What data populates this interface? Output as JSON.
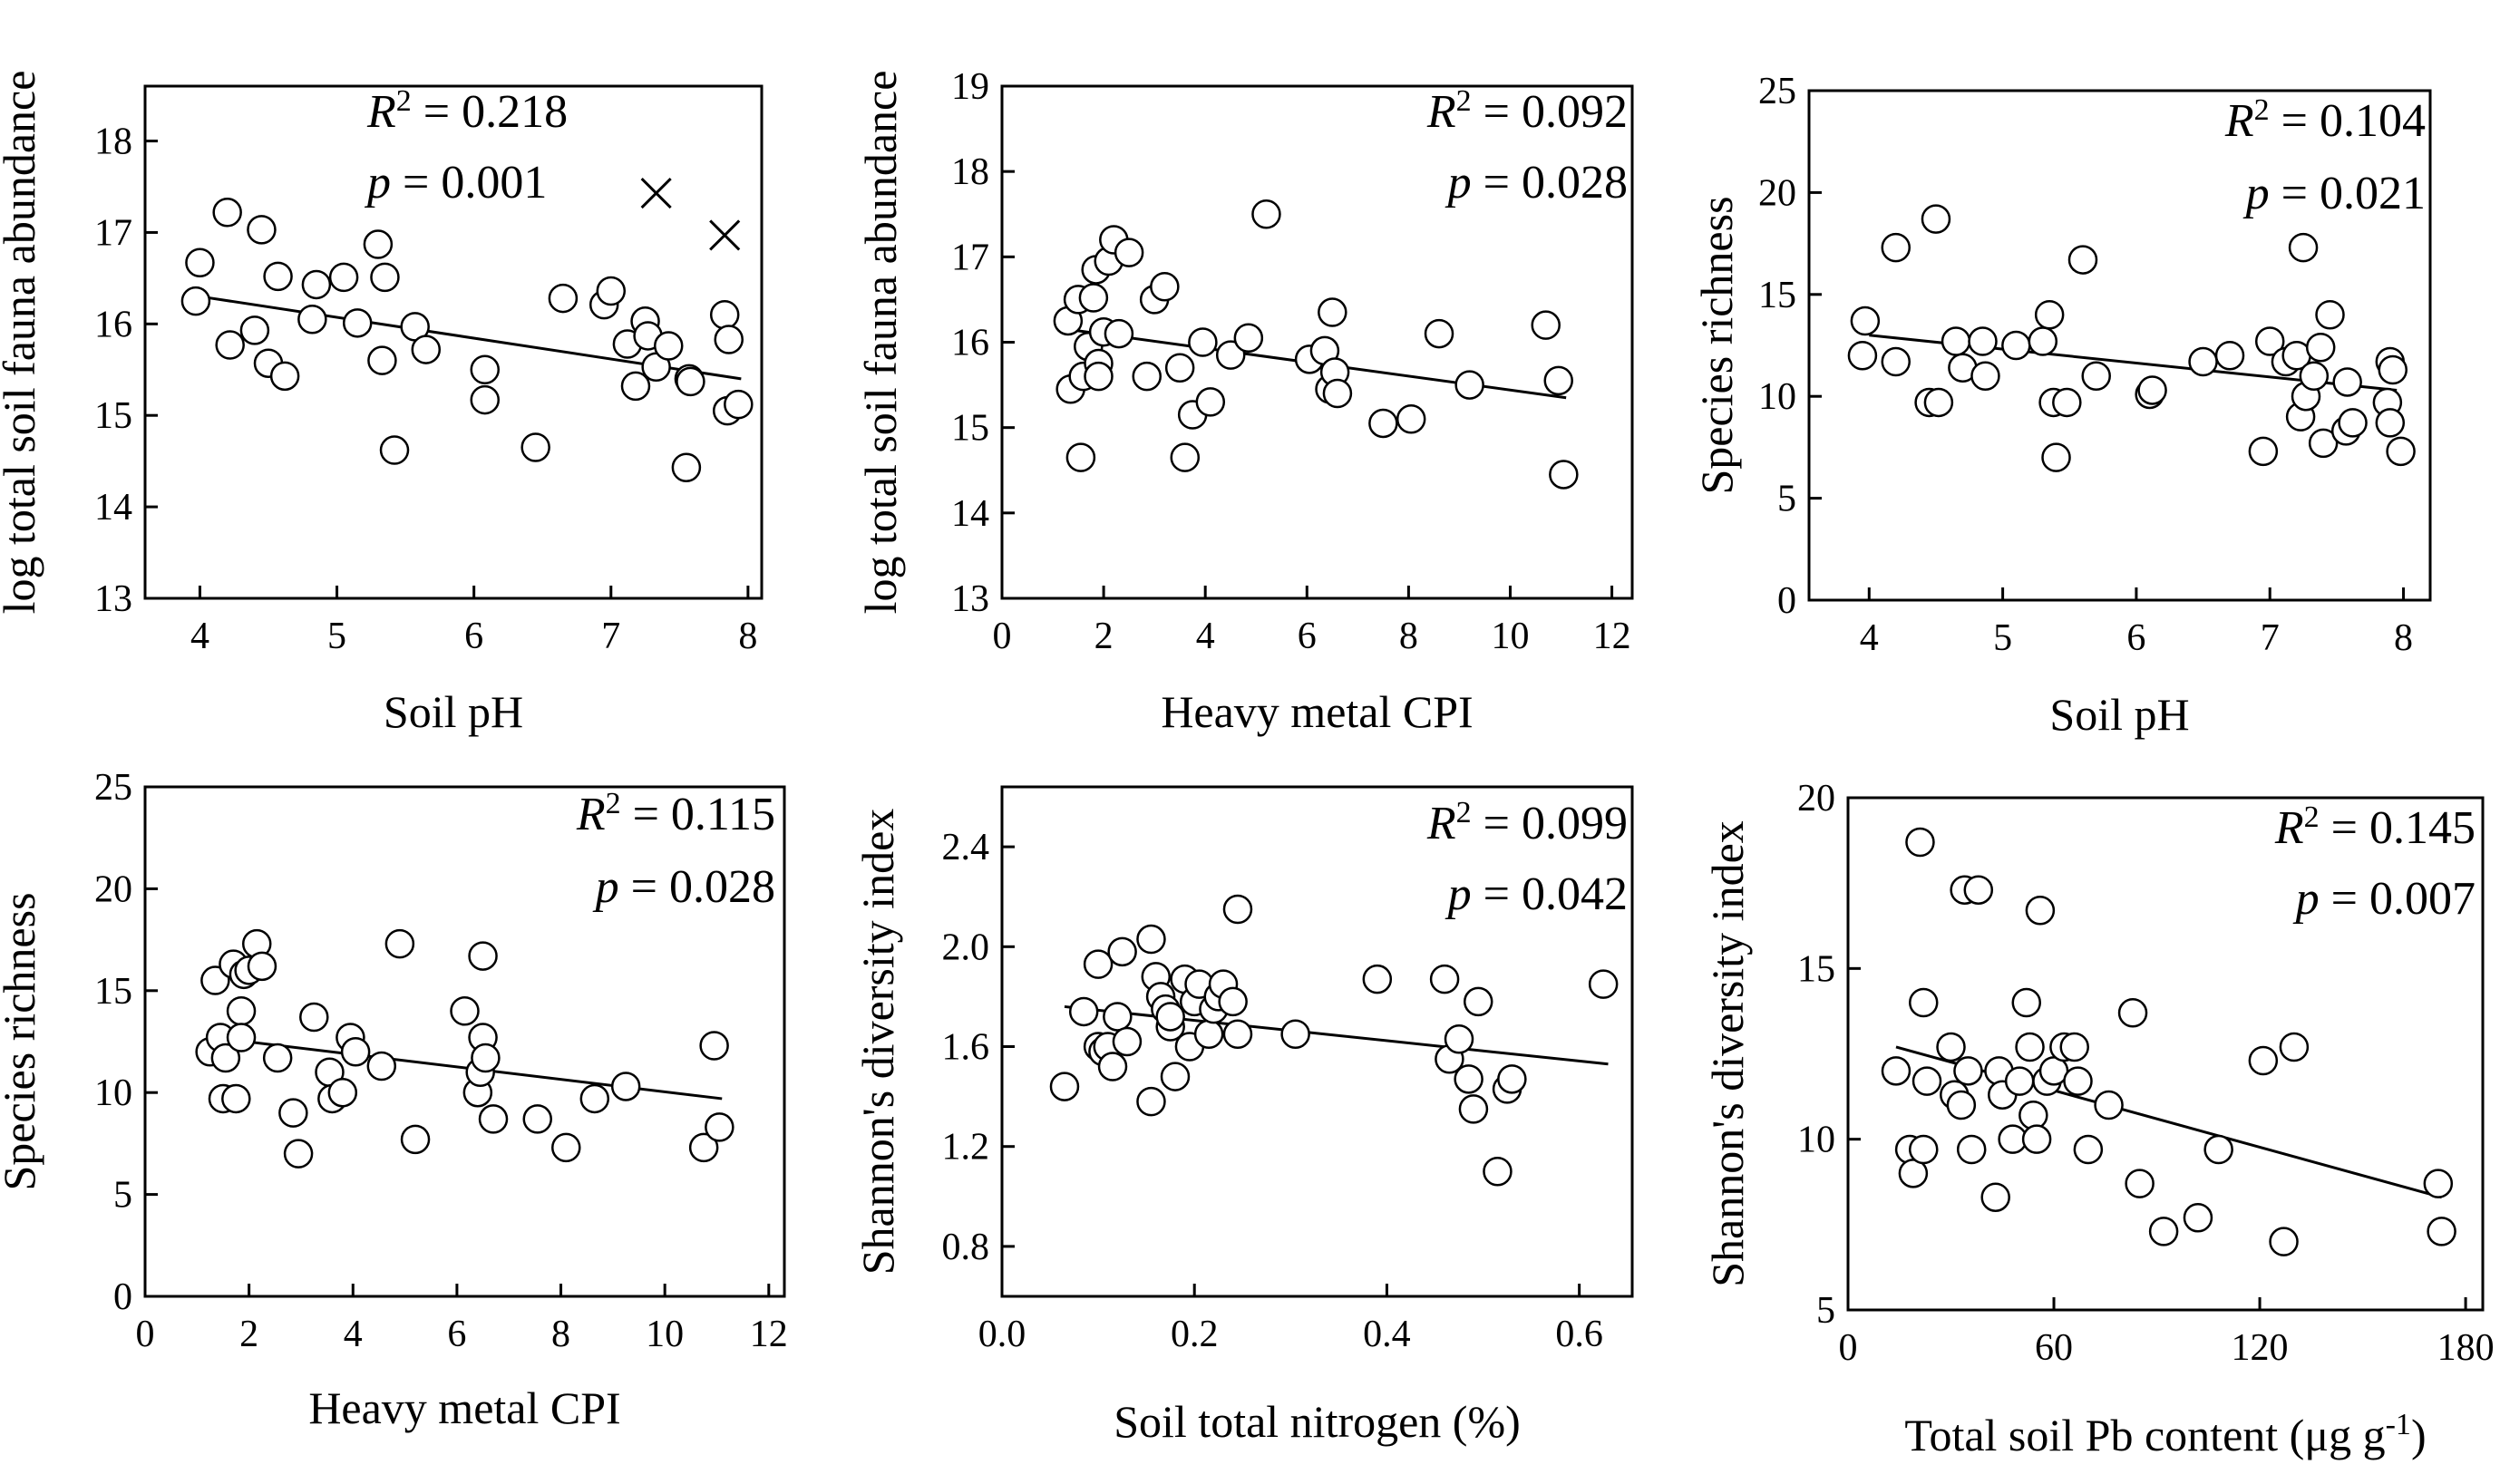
{
  "chart_data": [
    {
      "type": "scatter",
      "xlabel": "Soil pH",
      "ylabel": "log total soil fauna abundance",
      "xlim": [
        3.6,
        8.1
      ],
      "ylim": [
        13,
        18.6
      ],
      "xticks": [
        4,
        5,
        6,
        7,
        8
      ],
      "yticks": [
        13,
        14,
        15,
        16,
        17,
        18
      ],
      "stats": {
        "r2_label": "R",
        "r2_sup": "2",
        "r2_value": " = 0.218",
        "p_label": "p",
        "p_value": " = 0.001"
      },
      "fit": {
        "x": [
          4.0,
          7.95
        ],
        "y": [
          16.3,
          15.4
        ]
      },
      "points": [
        [
          3.97,
          16.25
        ],
        [
          4.0,
          16.67
        ],
        [
          4.2,
          17.22
        ],
        [
          4.22,
          15.77
        ],
        [
          4.4,
          15.93
        ],
        [
          4.45,
          17.03
        ],
        [
          4.5,
          15.57
        ],
        [
          4.57,
          16.52
        ],
        [
          4.62,
          15.43
        ],
        [
          4.82,
          16.05
        ],
        [
          4.85,
          16.43
        ],
        [
          5.05,
          16.51
        ],
        [
          5.15,
          16.01
        ],
        [
          5.3,
          16.87
        ],
        [
          5.33,
          15.6
        ],
        [
          5.35,
          16.51
        ],
        [
          5.42,
          14.62
        ],
        [
          5.57,
          15.97
        ],
        [
          5.65,
          15.72
        ],
        [
          6.08,
          15.5
        ],
        [
          6.08,
          15.17
        ],
        [
          6.45,
          14.65
        ],
        [
          6.65,
          16.28
        ],
        [
          6.95,
          16.21
        ],
        [
          7.0,
          16.36
        ],
        [
          7.12,
          15.78
        ],
        [
          7.18,
          15.32
        ],
        [
          7.25,
          16.03
        ],
        [
          7.27,
          15.87
        ],
        [
          7.33,
          15.53
        ],
        [
          7.42,
          15.76
        ],
        [
          7.57,
          15.4
        ],
        [
          7.55,
          14.43
        ],
        [
          7.58,
          15.37
        ],
        [
          7.83,
          16.1
        ],
        [
          7.85,
          15.05
        ],
        [
          7.86,
          15.83
        ],
        [
          7.93,
          15.12
        ]
      ],
      "outliers": [
        [
          7.33,
          17.43
        ],
        [
          7.83,
          16.97
        ]
      ]
    },
    {
      "type": "scatter",
      "xlabel": "Heavy metal CPI",
      "ylabel": "log total soil fauna abundance",
      "xlim": [
        0,
        12.4
      ],
      "ylim": [
        13,
        19
      ],
      "xticks": [
        0,
        2,
        4,
        6,
        8,
        10,
        12
      ],
      "yticks": [
        13,
        14,
        15,
        16,
        17,
        18,
        19
      ],
      "stats": {
        "r2_label": "R",
        "r2_sup": "2",
        "r2_value": " = 0.092",
        "p_label": "p",
        "p_value": " = 0.028"
      },
      "fit": {
        "x": [
          1.3,
          11.1
        ],
        "y": [
          16.15,
          15.35
        ]
      },
      "points": [
        [
          1.3,
          16.25
        ],
        [
          1.35,
          15.45
        ],
        [
          1.5,
          16.5
        ],
        [
          1.55,
          14.65
        ],
        [
          1.6,
          15.6
        ],
        [
          1.7,
          15.95
        ],
        [
          1.8,
          16.52
        ],
        [
          1.85,
          16.85
        ],
        [
          1.9,
          15.75
        ],
        [
          1.9,
          15.6
        ],
        [
          2.0,
          16.12
        ],
        [
          2.1,
          16.95
        ],
        [
          2.2,
          17.2
        ],
        [
          2.3,
          16.1
        ],
        [
          2.5,
          17.05
        ],
        [
          2.85,
          15.6
        ],
        [
          3.0,
          16.5
        ],
        [
          3.2,
          16.65
        ],
        [
          3.5,
          15.7
        ],
        [
          3.6,
          14.65
        ],
        [
          3.75,
          15.15
        ],
        [
          3.95,
          16.0
        ],
        [
          4.1,
          15.3
        ],
        [
          4.5,
          15.85
        ],
        [
          4.85,
          16.05
        ],
        [
          5.2,
          17.5
        ],
        [
          6.05,
          15.8
        ],
        [
          6.35,
          15.9
        ],
        [
          6.45,
          15.45
        ],
        [
          6.5,
          16.35
        ],
        [
          6.55,
          15.65
        ],
        [
          6.6,
          15.4
        ],
        [
          7.5,
          15.05
        ],
        [
          8.05,
          15.1
        ],
        [
          8.6,
          16.1
        ],
        [
          9.2,
          15.5
        ],
        [
          10.7,
          16.2
        ],
        [
          10.95,
          15.55
        ],
        [
          11.05,
          14.45
        ]
      ]
    },
    {
      "type": "scatter",
      "xlabel": "Soil pH",
      "ylabel": "Species richness",
      "xlim": [
        3.55,
        8.2
      ],
      "ylim": [
        0,
        25
      ],
      "xticks": [
        4,
        5,
        6,
        7,
        8
      ],
      "yticks": [
        0,
        5,
        10,
        15,
        20,
        25
      ],
      "stats": {
        "r2_label": "R",
        "r2_sup": "2",
        "r2_value": " = 0.104",
        "p_label": "p",
        "p_value": " = 0.021"
      },
      "fit": {
        "x": [
          4.0,
          7.95
        ],
        "y": [
          13.0,
          10.3
        ]
      },
      "points": [
        [
          3.95,
          12.0
        ],
        [
          3.97,
          13.7
        ],
        [
          4.2,
          17.3
        ],
        [
          4.2,
          11.7
        ],
        [
          4.45,
          9.7
        ],
        [
          4.5,
          18.7
        ],
        [
          4.52,
          9.7
        ],
        [
          4.65,
          12.7
        ],
        [
          4.7,
          11.4
        ],
        [
          4.85,
          12.7
        ],
        [
          4.87,
          11.0
        ],
        [
          5.1,
          12.5
        ],
        [
          5.3,
          12.7
        ],
        [
          5.35,
          14.0
        ],
        [
          5.38,
          9.7
        ],
        [
          5.4,
          7.0
        ],
        [
          5.48,
          9.7
        ],
        [
          5.6,
          16.7
        ],
        [
          5.7,
          11.0
        ],
        [
          6.1,
          10.1
        ],
        [
          6.12,
          10.3
        ],
        [
          6.5,
          11.7
        ],
        [
          6.7,
          12.0
        ],
        [
          6.95,
          7.3
        ],
        [
          7.0,
          12.7
        ],
        [
          7.12,
          11.7
        ],
        [
          7.2,
          12.0
        ],
        [
          7.23,
          9.0
        ],
        [
          7.25,
          17.3
        ],
        [
          7.27,
          10.0
        ],
        [
          7.33,
          11.0
        ],
        [
          7.38,
          12.4
        ],
        [
          7.4,
          7.7
        ],
        [
          7.45,
          14.0
        ],
        [
          7.57,
          8.3
        ],
        [
          7.58,
          10.7
        ],
        [
          7.62,
          8.7
        ],
        [
          7.88,
          9.7
        ],
        [
          7.9,
          11.7
        ],
        [
          7.92,
          11.3
        ],
        [
          7.9,
          8.7
        ],
        [
          7.98,
          7.3
        ]
      ]
    },
    {
      "type": "scatter",
      "xlabel": "Heavy metal CPI",
      "ylabel": "Species richness",
      "xlim": [
        0,
        12.3
      ],
      "ylim": [
        0,
        25
      ],
      "xticks": [
        0,
        2,
        4,
        6,
        8,
        10,
        12
      ],
      "yticks": [
        0,
        5,
        10,
        15,
        20,
        25
      ],
      "stats": {
        "r2_label": "R",
        "r2_sup": "2",
        "r2_value": " = 0.115",
        "p_label": "p",
        "p_value": " = 0.028"
      },
      "fit": {
        "x": [
          1.3,
          11.1
        ],
        "y": [
          12.7,
          9.7
        ]
      },
      "points": [
        [
          1.25,
          12.0
        ],
        [
          1.35,
          15.5
        ],
        [
          1.45,
          12.7
        ],
        [
          1.5,
          9.7
        ],
        [
          1.55,
          11.7
        ],
        [
          1.7,
          16.3
        ],
        [
          1.75,
          9.7
        ],
        [
          1.85,
          14.0
        ],
        [
          1.85,
          12.7
        ],
        [
          1.9,
          15.8
        ],
        [
          2.0,
          16.0
        ],
        [
          2.15,
          17.3
        ],
        [
          2.25,
          16.2
        ],
        [
          2.55,
          11.7
        ],
        [
          2.85,
          9.0
        ],
        [
          2.95,
          7.0
        ],
        [
          3.25,
          13.7
        ],
        [
          3.55,
          11.0
        ],
        [
          3.6,
          9.7
        ],
        [
          3.8,
          10.0
        ],
        [
          3.95,
          12.7
        ],
        [
          4.05,
          12.0
        ],
        [
          4.55,
          11.3
        ],
        [
          4.9,
          17.3
        ],
        [
          5.2,
          7.7
        ],
        [
          6.15,
          14.0
        ],
        [
          6.4,
          10.0
        ],
        [
          6.45,
          11.0
        ],
        [
          6.5,
          16.7
        ],
        [
          6.5,
          12.7
        ],
        [
          6.55,
          11.7
        ],
        [
          6.7,
          8.7
        ],
        [
          7.55,
          8.7
        ],
        [
          8.1,
          7.3
        ],
        [
          8.65,
          9.7
        ],
        [
          9.25,
          10.3
        ],
        [
          10.75,
          7.3
        ],
        [
          10.95,
          12.3
        ],
        [
          11.05,
          8.3
        ]
      ]
    },
    {
      "type": "scatter",
      "xlabel": "Soil total nitrogen (%)",
      "ylabel": "Shannon's diversity index",
      "xlim": [
        0,
        0.655
      ],
      "ylim": [
        0.6,
        2.64
      ],
      "xticks": [
        0.0,
        0.2,
        0.4,
        0.6
      ],
      "yticks": [
        0.8,
        1.2,
        1.6,
        2.0,
        2.4
      ],
      "stats": {
        "r2_label": "R",
        "r2_sup": "2",
        "r2_value": " = 0.099",
        "p_label": "p",
        "p_value": " = 0.042"
      },
      "fit": {
        "x": [
          0.065,
          0.63
        ],
        "y": [
          1.76,
          1.53
        ]
      },
      "points": [
        [
          0.065,
          1.44
        ],
        [
          0.085,
          1.74
        ],
        [
          0.1,
          1.93
        ],
        [
          0.1,
          1.6
        ],
        [
          0.105,
          1.58
        ],
        [
          0.11,
          1.6
        ],
        [
          0.115,
          1.52
        ],
        [
          0.12,
          1.72
        ],
        [
          0.125,
          1.98
        ],
        [
          0.13,
          1.62
        ],
        [
          0.155,
          2.03
        ],
        [
          0.155,
          1.38
        ],
        [
          0.16,
          1.88
        ],
        [
          0.165,
          1.8
        ],
        [
          0.17,
          1.75
        ],
        [
          0.175,
          1.68
        ],
        [
          0.175,
          1.72
        ],
        [
          0.18,
          1.48
        ],
        [
          0.19,
          1.87
        ],
        [
          0.195,
          1.6
        ],
        [
          0.2,
          1.78
        ],
        [
          0.205,
          1.85
        ],
        [
          0.215,
          1.65
        ],
        [
          0.22,
          1.75
        ],
        [
          0.225,
          1.8
        ],
        [
          0.23,
          1.85
        ],
        [
          0.24,
          1.78
        ],
        [
          0.245,
          1.65
        ],
        [
          0.245,
          2.15
        ],
        [
          0.305,
          1.65
        ],
        [
          0.39,
          1.87
        ],
        [
          0.46,
          1.87
        ],
        [
          0.465,
          1.55
        ],
        [
          0.475,
          1.63
        ],
        [
          0.485,
          1.47
        ],
        [
          0.49,
          1.35
        ],
        [
          0.495,
          1.78
        ],
        [
          0.515,
          1.1
        ],
        [
          0.525,
          1.43
        ],
        [
          0.53,
          1.47
        ],
        [
          0.625,
          1.85
        ]
      ]
    },
    {
      "type": "scatter",
      "xlabel_main": "Total soil Pb content (μg g",
      "xlabel_sup": "-1",
      "xlabel_end": ")",
      "ylabel": "Shannon's diversity index",
      "xlim": [
        0,
        185
      ],
      "ylim": [
        5,
        20
      ],
      "xticks": [
        0,
        60,
        120,
        180
      ],
      "yticks": [
        5,
        10,
        15,
        20
      ],
      "stats": {
        "r2_label": "R",
        "r2_sup": "2",
        "r2_value": " = 0.145",
        "p_label": "p",
        "p_value": " = 0.007"
      },
      "fit": {
        "x": [
          14,
          173
        ],
        "y": [
          12.7,
          8.3
        ]
      },
      "points": [
        [
          14,
          12.0
        ],
        [
          18,
          9.7
        ],
        [
          19,
          9.0
        ],
        [
          21,
          18.7
        ],
        [
          22,
          14.0
        ],
        [
          22,
          9.7
        ],
        [
          23,
          11.7
        ],
        [
          30,
          12.7
        ],
        [
          31,
          11.3
        ],
        [
          33,
          11.0
        ],
        [
          34,
          17.3
        ],
        [
          35,
          12.0
        ],
        [
          38,
          17.3
        ],
        [
          36,
          9.7
        ],
        [
          43,
          8.3
        ],
        [
          44,
          12.0
        ],
        [
          45,
          11.3
        ],
        [
          48,
          10.0
        ],
        [
          50,
          11.7
        ],
        [
          52,
          14.0
        ],
        [
          53,
          12.7
        ],
        [
          54,
          10.7
        ],
        [
          55,
          10.0
        ],
        [
          56,
          16.7
        ],
        [
          58,
          11.7
        ],
        [
          60,
          12.0
        ],
        [
          63,
          12.7
        ],
        [
          66,
          12.7
        ],
        [
          67,
          11.7
        ],
        [
          70,
          9.7
        ],
        [
          76,
          11.0
        ],
        [
          83,
          13.7
        ],
        [
          85,
          8.7
        ],
        [
          92,
          7.3
        ],
        [
          102,
          7.7
        ],
        [
          108,
          9.7
        ],
        [
          121,
          12.3
        ],
        [
          127,
          7.0
        ],
        [
          130,
          12.7
        ],
        [
          172,
          8.7
        ],
        [
          173,
          7.3
        ]
      ]
    }
  ]
}
